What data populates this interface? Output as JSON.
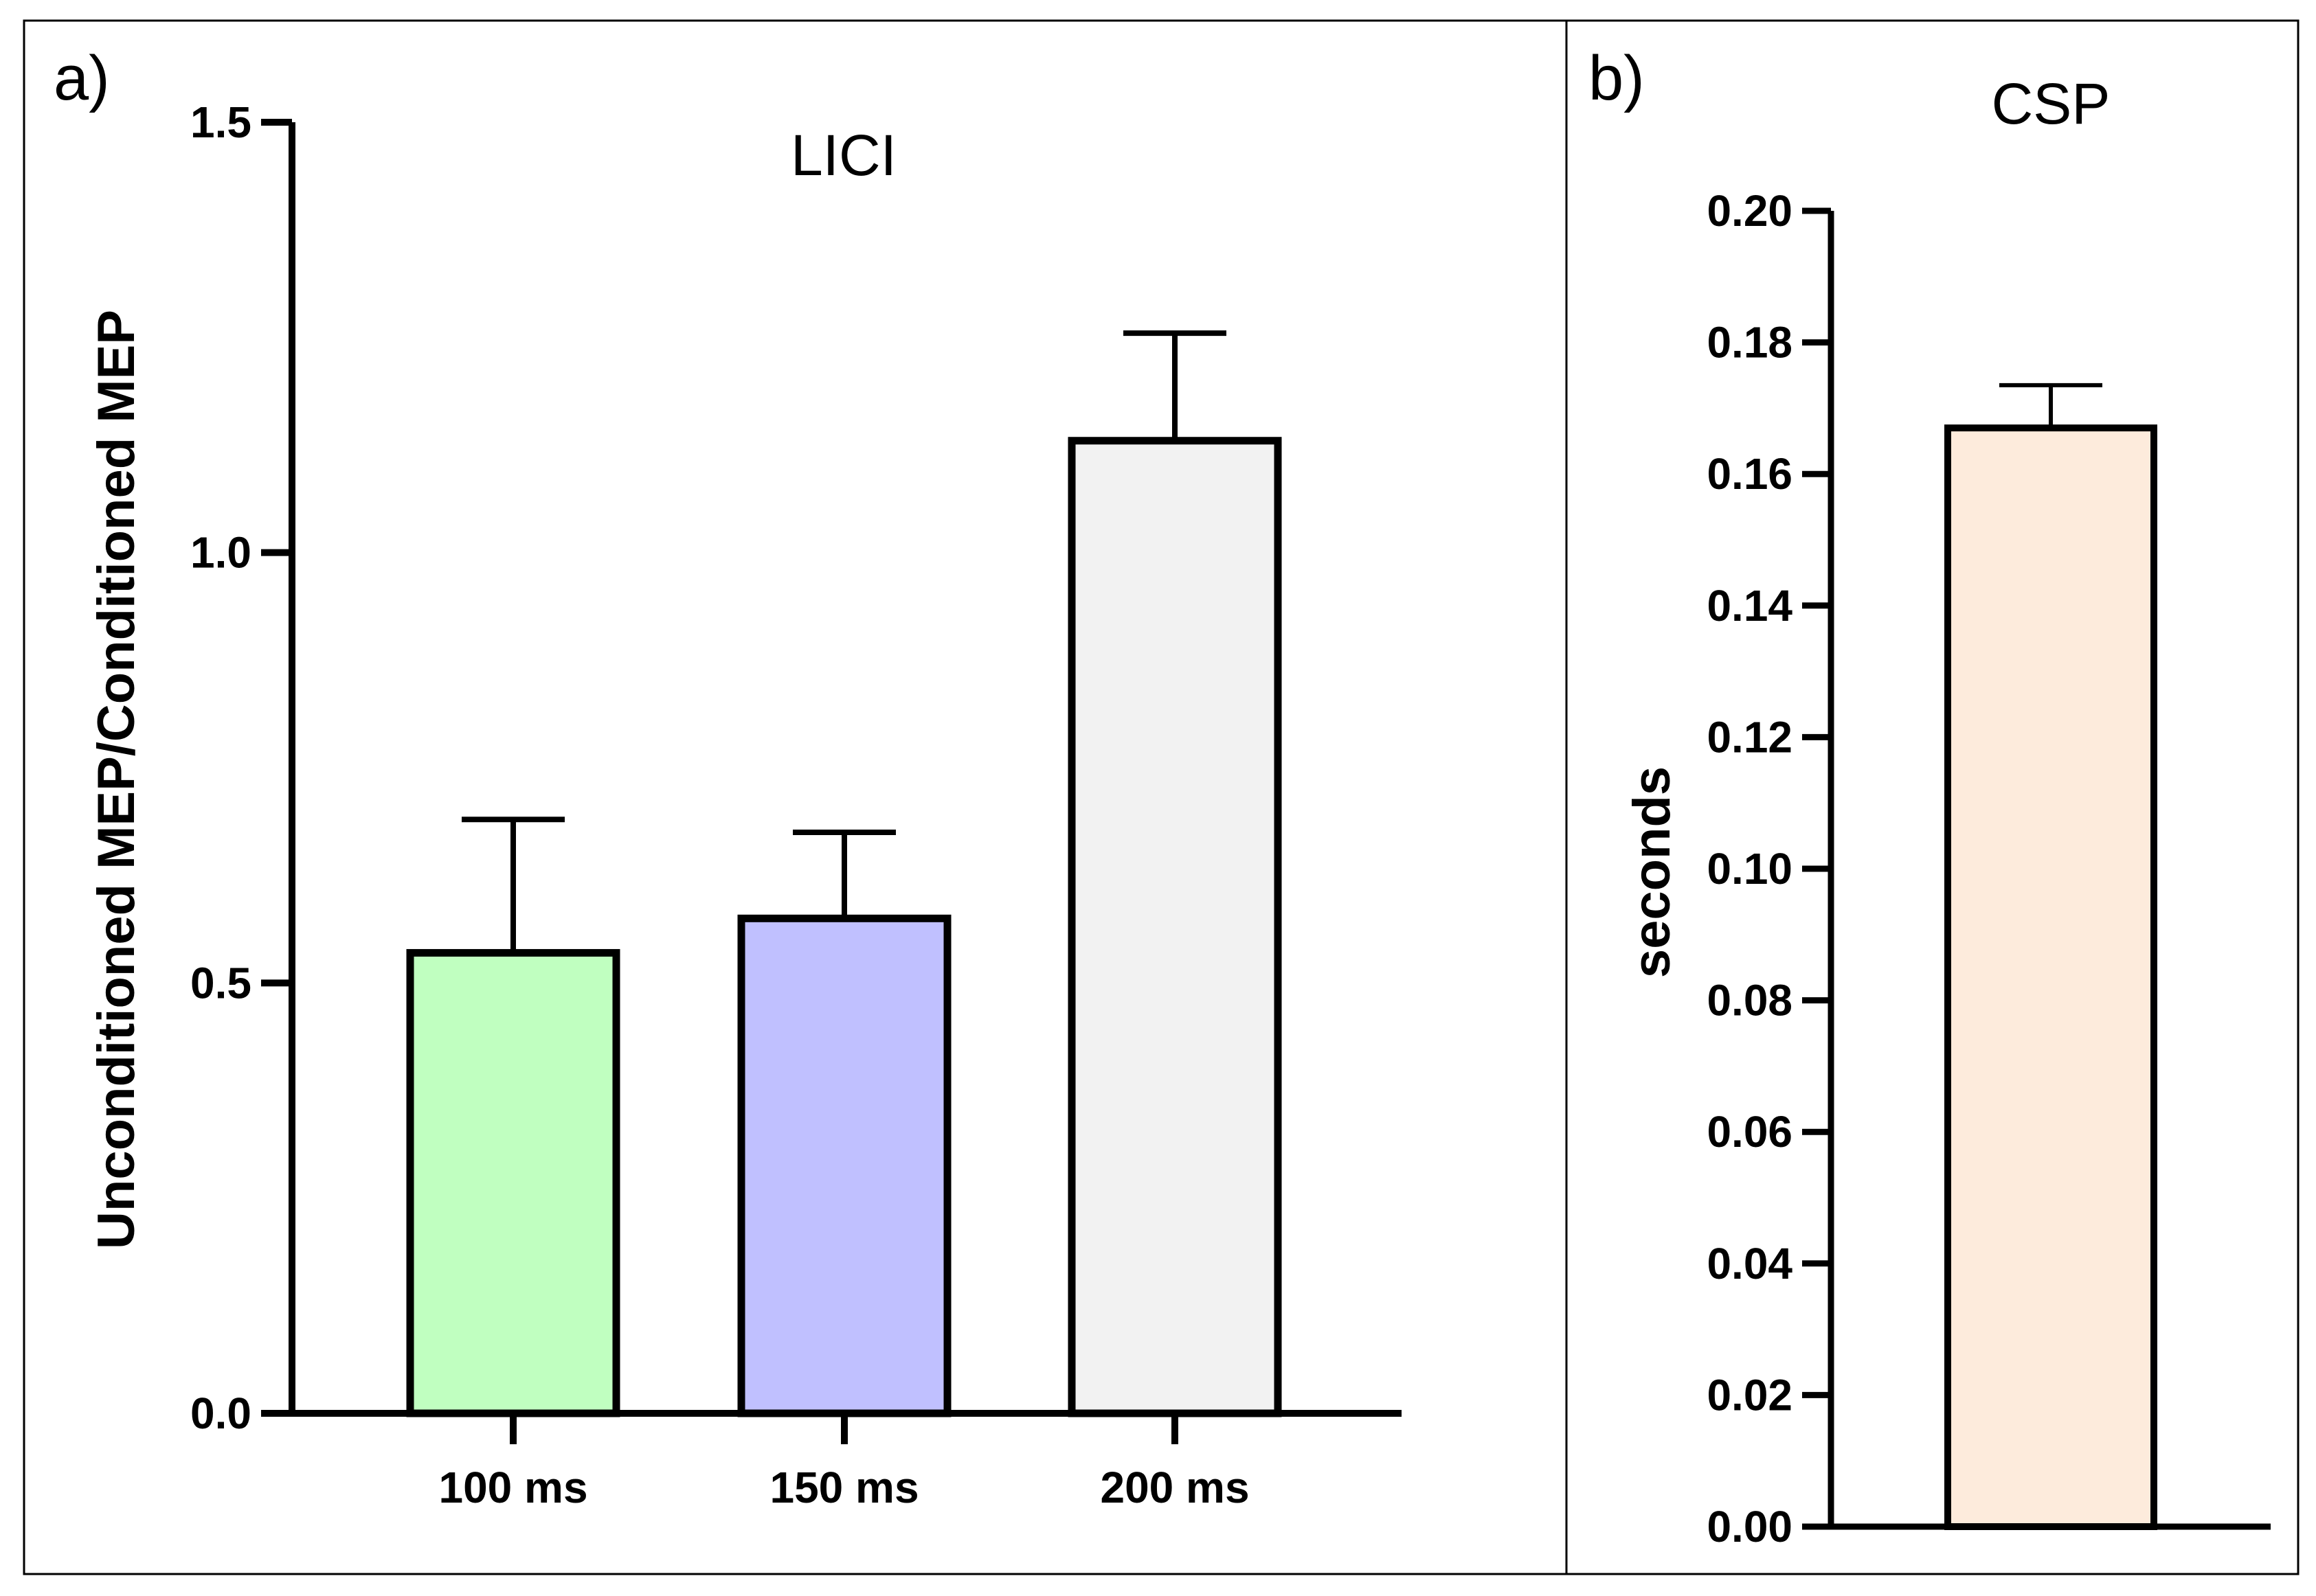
{
  "colors": {
    "frame": "#000000",
    "bar_100": "#c0ffc0",
    "bar_150": "#c0c0ff",
    "bar_200": "#f2f2f2",
    "bar_csp": "#fdebdc"
  },
  "chart_data": [
    {
      "panel_label": "a)",
      "type": "bar",
      "title": "LICI",
      "xlabel": "",
      "ylabel": "Unconditioned MEP/Conditioned MEP",
      "ylim": [
        0,
        1.5
      ],
      "yticks": [
        0,
        0.5,
        1.0,
        1.5
      ],
      "ytick_labels": [
        "0.0",
        "0.5",
        "1.0",
        "1.5"
      ],
      "categories": [
        "100 ms",
        "150 ms",
        "200 ms"
      ],
      "values": [
        0.535,
        0.575,
        1.13
      ],
      "errors": [
        0.155,
        0.1,
        0.125
      ],
      "bar_colors": [
        "#c0ffc0",
        "#c0c0ff",
        "#f2f2f2"
      ],
      "grid": false
    },
    {
      "panel_label": "b)",
      "type": "bar",
      "title": "CSP",
      "xlabel": "",
      "ylabel": "seconds",
      "ylim": [
        0,
        0.2
      ],
      "yticks": [
        0,
        0.02,
        0.04,
        0.06,
        0.08,
        0.1,
        0.12,
        0.14,
        0.16,
        0.18,
        0.2
      ],
      "ytick_labels": [
        "0.00",
        "0.02",
        "0.04",
        "0.06",
        "0.08",
        "0.10",
        "0.12",
        "0.14",
        "0.16",
        "0.18",
        "0.20"
      ],
      "categories": [
        ""
      ],
      "values": [
        0.167
      ],
      "errors": [
        0.0065
      ],
      "bar_colors": [
        "#fdebdc"
      ],
      "grid": false
    }
  ]
}
